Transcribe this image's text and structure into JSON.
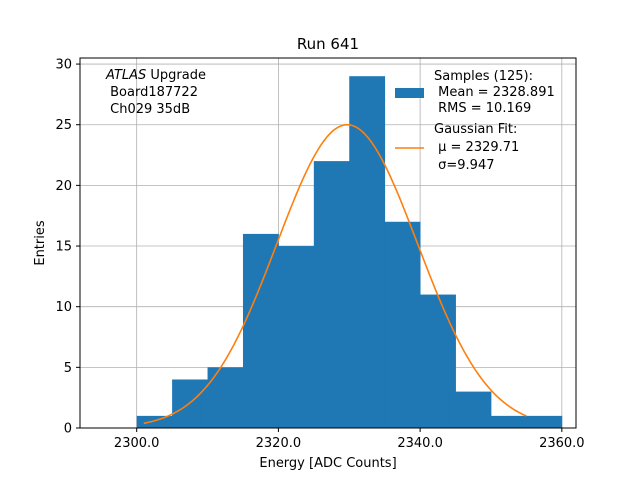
{
  "chart_data": {
    "type": "bar",
    "title": "Run 641",
    "xlabel": "Energy [ADC Counts]",
    "ylabel": "Entries",
    "xlim": [
      2292,
      2362
    ],
    "ylim": [
      0,
      30.5
    ],
    "x_ticks": [
      2300,
      2320,
      2340,
      2360
    ],
    "x_tick_labels": [
      "2300.0",
      "2320.0",
      "2340.0",
      "2360.0"
    ],
    "y_ticks": [
      0,
      5,
      10,
      15,
      20,
      25,
      30
    ],
    "y_tick_labels": [
      "0",
      "5",
      "10",
      "15",
      "20",
      "25",
      "30"
    ],
    "grid": true,
    "histogram": {
      "name": "Samples (125):",
      "color": "#1f77b4",
      "bin_edges": [
        2300,
        2305,
        2310,
        2315,
        2320,
        2325,
        2330,
        2335,
        2340,
        2345,
        2350,
        2355,
        2360
      ],
      "counts": [
        1,
        4,
        5,
        16,
        15,
        22,
        29,
        17,
        11,
        3,
        1,
        1
      ]
    },
    "fit": {
      "name": "Gaussian Fit:",
      "color": "#ff7f0e",
      "mu": 2329.71,
      "sigma": 9.947,
      "amplitude": 25,
      "x_range": [
        2301,
        2355
      ]
    },
    "legend": {
      "location": "upper right",
      "samples_lines": [
        "Samples (125):",
        " Mean = 2328.891",
        " RMS = 10.169"
      ],
      "fit_lines": [
        "Gaussian Fit:",
        " μ = 2329.71",
        " σ=9.947"
      ]
    },
    "annotation": {
      "italic_part": "ATLAS",
      "rest_line1": " Upgrade",
      "line2": " Board187722",
      "line3": " Ch029 35dB"
    }
  }
}
